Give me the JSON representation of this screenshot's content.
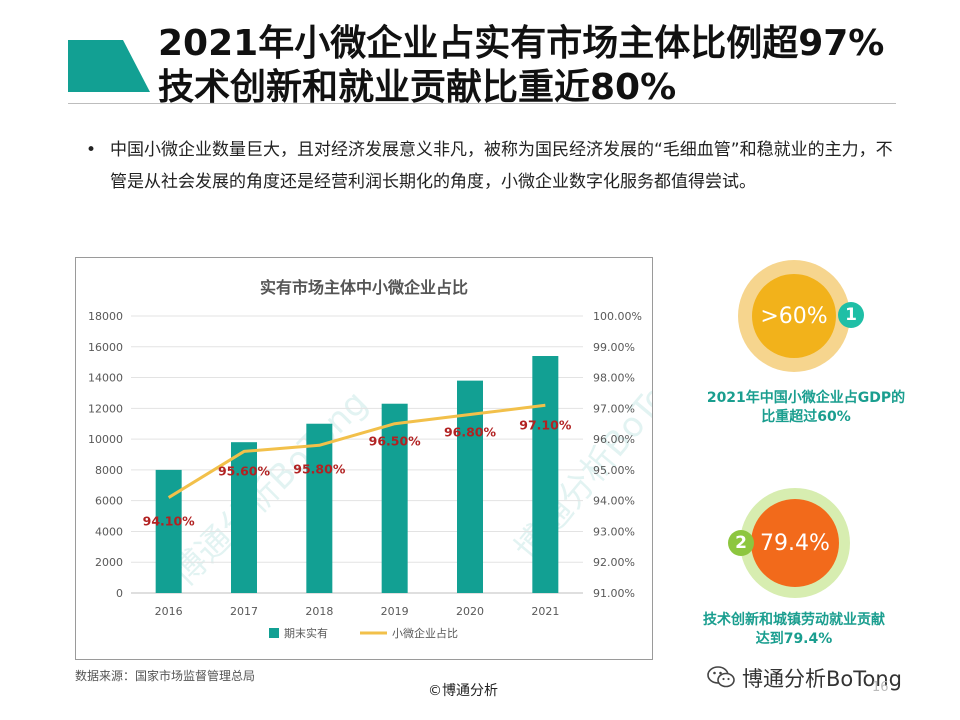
{
  "header": {
    "title_line1": "2021年小微企业占实有市场主体比例超97%",
    "title_line2": "技术创新和就业贡献比重近80%",
    "accent_color": "#12A093"
  },
  "bullet": {
    "marker": "•",
    "text": "中国小微企业数量巨大，且对经济发展意义非凡，被称为国民经济发展的“毛细血管”和稳就业的主力，不管是从社会发展的角度还是经营利润长期化的角度，小微企业数字化服务都值得尝试。"
  },
  "chart_data": {
    "type": "bar",
    "title": "实有市场主体中小微企业占比",
    "categories": [
      "2016",
      "2017",
      "2018",
      "2019",
      "2020",
      "2021"
    ],
    "series": [
      {
        "name": "期末实有",
        "type": "bar",
        "axis": "left",
        "color": "#12A093",
        "values": [
          8000,
          9800,
          11000,
          12300,
          13800,
          15400
        ]
      },
      {
        "name": "小微企业占比",
        "type": "line",
        "axis": "right",
        "color": "#F2C04A",
        "values": [
          94.1,
          95.6,
          95.8,
          96.5,
          96.8,
          97.1
        ],
        "labels": [
          "94.10%",
          "95.60%",
          "95.80%",
          "96.50%",
          "96.80%",
          "97.10%"
        ],
        "label_color": "#B22222"
      }
    ],
    "y_left": {
      "min": 0,
      "max": 18000,
      "step": 2000,
      "ticks": [
        "0",
        "2000",
        "4000",
        "6000",
        "8000",
        "10000",
        "12000",
        "14000",
        "16000",
        "18000"
      ]
    },
    "y_right": {
      "min": 91,
      "max": 100,
      "step": 1,
      "ticks": [
        "91.00%",
        "92.00%",
        "93.00%",
        "94.00%",
        "95.00%",
        "96.00%",
        "97.00%",
        "98.00%",
        "99.00%",
        "100.00%"
      ]
    },
    "grid": true,
    "legend": "bottom",
    "watermark": "博通分析BoTong"
  },
  "source": "数据来源：国家市场监督管理总局",
  "stats": [
    {
      "number": "1",
      "value": ">60%",
      "label_line1": "2021年中国小微企业占GDP的",
      "label_line2": "比重超过60%",
      "ring_color": "#F6D58E",
      "fill_color": "#F2B21B",
      "badge_color": "#1FBFA6",
      "label_color": "#1A9E8F"
    },
    {
      "number": "2",
      "value": "79.4%",
      "label_line1": "技术创新和城镇劳动就业贡献",
      "label_line2": "达到79.4%",
      "ring_color": "#D7EDB0",
      "fill_color": "#F26A1B",
      "badge_color": "#8DC63F",
      "label_color": "#1A9E8F"
    }
  ],
  "footer": {
    "copyright": "©博通分析",
    "brand": "博通分析BoTong",
    "page": "16"
  }
}
